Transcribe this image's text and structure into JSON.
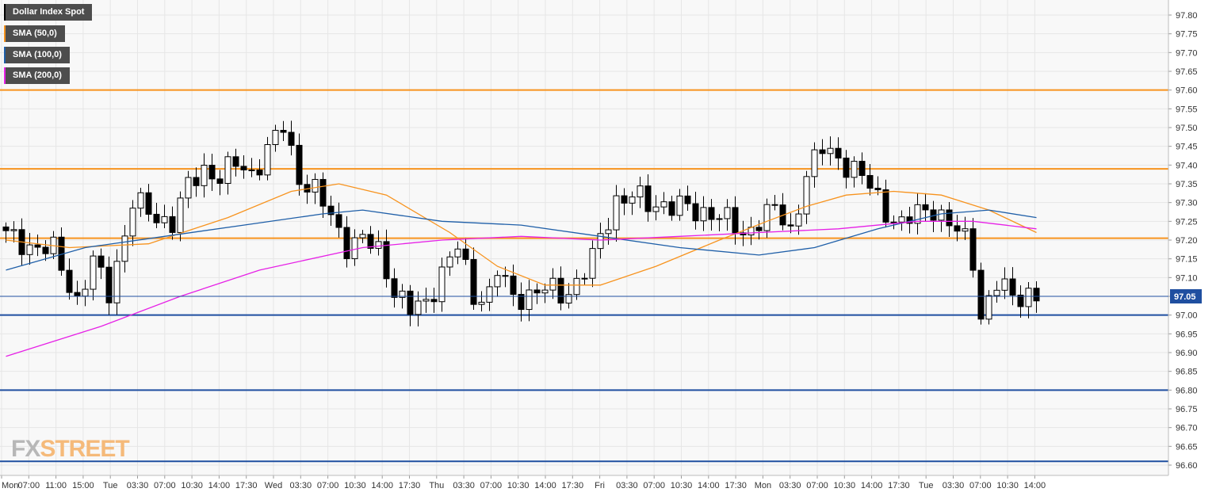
{
  "legend": [
    {
      "label": "Dollar Index Spot",
      "color": "#000000"
    },
    {
      "label": "SMA (50,0)",
      "color": "#f7931e"
    },
    {
      "label": "SMA (100,0)",
      "color": "#1f5fa8"
    },
    {
      "label": "SMA (200,0)",
      "color": "#e620e6"
    }
  ],
  "watermark": {
    "part1": "FX",
    "part2": "STREET"
  },
  "chart_data": {
    "type": "candlestick",
    "title": "",
    "xlabel": "",
    "ylabel": "",
    "ylim": [
      96.58,
      97.84
    ],
    "y_ticks": [
      97.8,
      97.75,
      97.7,
      97.65,
      97.6,
      97.55,
      97.5,
      97.45,
      97.4,
      97.35,
      97.3,
      97.25,
      97.2,
      97.15,
      97.1,
      97.05,
      97.0,
      96.95,
      96.9,
      96.85,
      96.8,
      96.75,
      96.7,
      96.65,
      96.6
    ],
    "x_ticks": [
      "Mon",
      "07:00",
      "11:00",
      "15:00",
      "Tue",
      "03:30",
      "07:00",
      "10:30",
      "14:00",
      "17:30",
      "Wed",
      "03:30",
      "07:00",
      "10:30",
      "14:00",
      "17:30",
      "Thu",
      "03:30",
      "07:00",
      "10:30",
      "14:00",
      "17:30",
      "Fri",
      "03:30",
      "07:00",
      "10:30",
      "14:00",
      "17:30",
      "Mon",
      "03:30",
      "07:00",
      "10:30",
      "14:00",
      "17:30",
      "Tue",
      "03:30",
      "07:00",
      "10:30",
      "14:00"
    ],
    "last_price": 97.05,
    "last_price_label": "97.05",
    "horizontal_levels": [
      {
        "value": 97.6,
        "color": "#f7931e"
      },
      {
        "value": 97.39,
        "color": "#f7931e"
      },
      {
        "value": 97.205,
        "color": "#f7931e"
      },
      {
        "value": 97.0,
        "color": "#1f4fa0"
      },
      {
        "value": 96.8,
        "color": "#1f4fa0"
      },
      {
        "value": 96.61,
        "color": "#1f4fa0"
      }
    ],
    "close_path": [
      [
        0,
        97.21
      ],
      [
        4,
        97.18
      ],
      [
        6,
        97.17
      ],
      [
        9,
        97.04
      ],
      [
        11,
        97.14
      ],
      [
        13,
        97.06
      ],
      [
        16,
        97.3
      ],
      [
        19,
        97.26
      ],
      [
        21,
        97.25
      ],
      [
        23,
        97.34
      ],
      [
        25,
        97.39
      ],
      [
        27,
        97.37
      ],
      [
        29,
        97.4
      ],
      [
        31,
        97.38
      ],
      [
        33,
        97.44
      ],
      [
        35,
        97.5
      ],
      [
        37,
        97.37
      ],
      [
        39,
        97.33
      ],
      [
        41,
        97.26
      ],
      [
        43,
        97.19
      ],
      [
        45,
        97.2
      ],
      [
        47,
        97.17
      ],
      [
        49,
        97.07
      ],
      [
        51,
        97.01
      ],
      [
        53,
        97.03
      ],
      [
        55,
        97.12
      ],
      [
        57,
        97.18
      ],
      [
        59,
        97.05
      ],
      [
        61,
        97.06
      ],
      [
        62,
        97.12
      ],
      [
        64,
        97.04
      ],
      [
        66,
        97.06
      ],
      [
        68,
        97.07
      ],
      [
        70,
        97.05
      ],
      [
        72,
        97.09
      ],
      [
        74,
        97.15
      ],
      [
        75,
        97.2
      ],
      [
        77,
        97.31
      ],
      [
        79,
        97.32
      ],
      [
        81,
        97.29
      ],
      [
        83,
        97.3
      ],
      [
        85,
        97.29
      ],
      [
        87,
        97.27
      ],
      [
        89,
        97.28
      ],
      [
        91,
        97.25
      ],
      [
        93,
        97.21
      ],
      [
        95,
        97.26
      ],
      [
        97,
        97.28
      ],
      [
        99,
        97.22
      ],
      [
        101,
        97.38
      ],
      [
        103,
        97.44
      ],
      [
        105,
        97.42
      ],
      [
        107,
        97.39
      ],
      [
        109,
        97.34
      ],
      [
        111,
        97.28
      ],
      [
        113,
        97.24
      ],
      [
        115,
        97.27
      ],
      [
        117,
        97.29
      ],
      [
        119,
        97.24
      ],
      [
        121,
        97.2
      ],
      [
        122,
        97.15
      ],
      [
        123,
        97.0
      ],
      [
        125,
        97.08
      ],
      [
        127,
        97.05
      ],
      [
        129,
        97.06
      ],
      [
        130,
        97.05
      ]
    ],
    "series": [
      {
        "name": "SMA (50,0)",
        "color": "#f7931e",
        "points": [
          [
            0,
            97.2
          ],
          [
            8,
            97.18
          ],
          [
            18,
            97.19
          ],
          [
            28,
            97.26
          ],
          [
            36,
            97.33
          ],
          [
            42,
            97.35
          ],
          [
            48,
            97.32
          ],
          [
            56,
            97.22
          ],
          [
            62,
            97.13
          ],
          [
            68,
            97.08
          ],
          [
            75,
            97.08
          ],
          [
            82,
            97.13
          ],
          [
            90,
            97.2
          ],
          [
            96,
            97.25
          ],
          [
            101,
            97.29
          ],
          [
            106,
            97.32
          ],
          [
            112,
            97.33
          ],
          [
            118,
            97.32
          ],
          [
            124,
            97.28
          ],
          [
            130,
            97.22
          ]
        ]
      },
      {
        "name": "SMA (100,0)",
        "color": "#1f5fa8",
        "points": [
          [
            0,
            97.12
          ],
          [
            10,
            97.18
          ],
          [
            20,
            97.21
          ],
          [
            30,
            97.24
          ],
          [
            40,
            97.27
          ],
          [
            45,
            97.28
          ],
          [
            55,
            97.25
          ],
          [
            65,
            97.24
          ],
          [
            75,
            97.21
          ],
          [
            85,
            97.18
          ],
          [
            95,
            97.16
          ],
          [
            102,
            97.18
          ],
          [
            110,
            97.23
          ],
          [
            118,
            97.27
          ],
          [
            124,
            97.28
          ],
          [
            130,
            97.26
          ]
        ]
      },
      {
        "name": "SMA (200,0)",
        "color": "#e620e6",
        "points": [
          [
            0,
            96.89
          ],
          [
            12,
            96.97
          ],
          [
            22,
            97.05
          ],
          [
            32,
            97.12
          ],
          [
            45,
            97.18
          ],
          [
            55,
            97.2
          ],
          [
            65,
            97.21
          ],
          [
            75,
            97.2
          ],
          [
            85,
            97.21
          ],
          [
            95,
            97.22
          ],
          [
            105,
            97.23
          ],
          [
            115,
            97.25
          ],
          [
            122,
            97.25
          ],
          [
            130,
            97.23
          ]
        ]
      }
    ],
    "grid": true,
    "legend_position": "top-left",
    "y_axis_position": "right",
    "colors": {
      "up_candle": "#ffffff",
      "down_candle": "#000000",
      "grid": "#e6e6e6",
      "last_price_line": "#1f4fa0",
      "price_label_bg": "#1f4fa0"
    }
  }
}
